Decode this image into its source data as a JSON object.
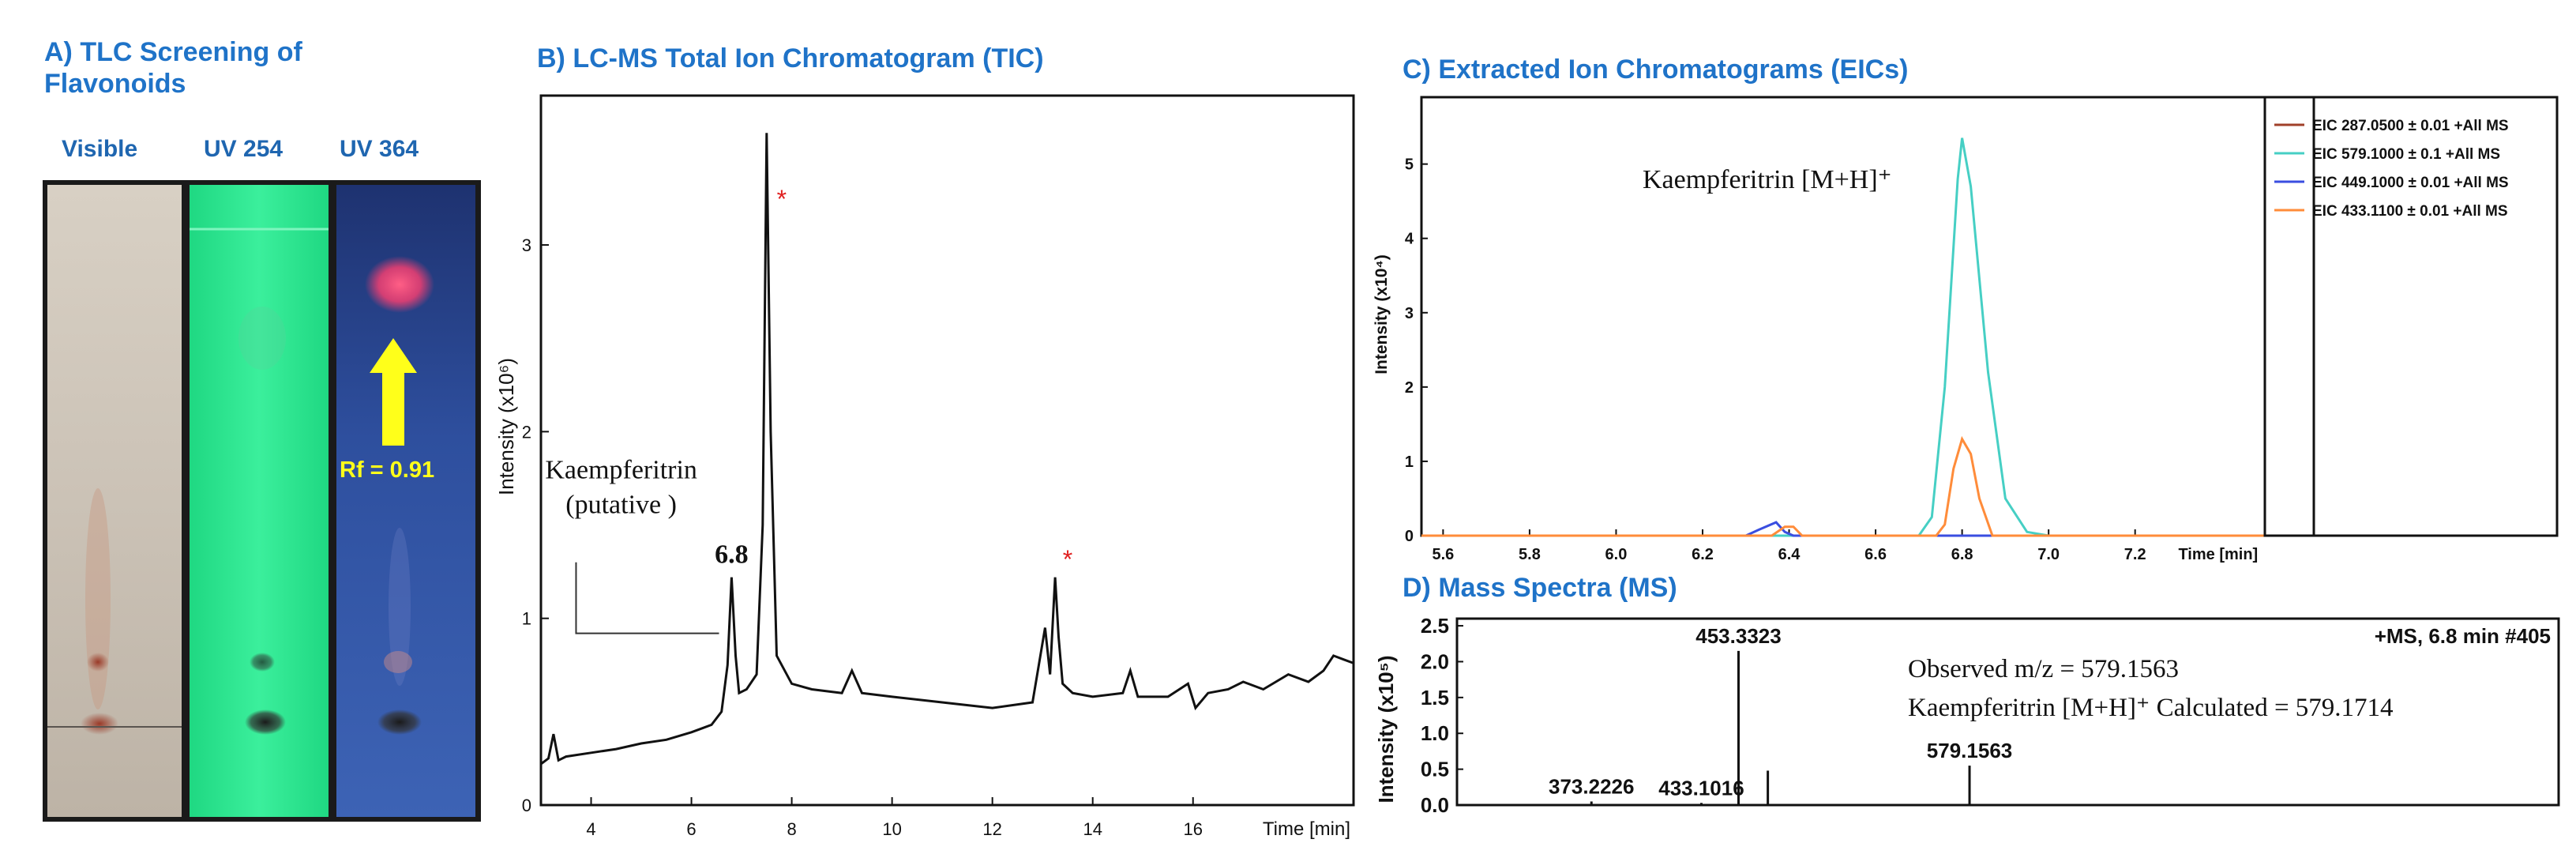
{
  "panelA": {
    "title_line1": "A) TLC Screening of",
    "title_line2": "Flavonoids",
    "lanes": [
      "Visible",
      "UV 254",
      "UV 364"
    ],
    "rf_label": "Rf = 0.91",
    "colors": {
      "visible_bg": "#c9c0b4",
      "uv254_bg": "#2ee58e",
      "uv364_bg": "#2a4a9a",
      "spot_pink": "#ff4f7a",
      "arrow": "#ffff00"
    }
  },
  "panelB": {
    "title": "B) LC-MS Total Ion Chromatogram (TIC)"
  },
  "panelC": {
    "title": "C) Extracted Ion Chromatograms (EICs)"
  },
  "panelD": {
    "title": "D) Mass Spectra (MS)"
  },
  "chart_data": [
    {
      "type": "line",
      "panel": "B",
      "ylabel": "Intensity (x10⁶)",
      "xlabel": "Time [min]",
      "xlim": [
        3,
        19.2
      ],
      "ylim": [
        0,
        3.8
      ],
      "xticks": [
        4,
        6,
        8,
        10,
        12,
        14,
        16
      ],
      "yticks": [
        0,
        1,
        2,
        3
      ],
      "x": [
        3.0,
        3.15,
        3.25,
        3.35,
        3.5,
        4.0,
        4.5,
        5.0,
        5.5,
        6.0,
        6.4,
        6.6,
        6.72,
        6.8,
        6.88,
        6.95,
        7.1,
        7.3,
        7.42,
        7.5,
        7.58,
        7.7,
        8.0,
        8.4,
        9.0,
        9.2,
        9.4,
        10.0,
        11.0,
        12.0,
        12.8,
        13.05,
        13.15,
        13.25,
        13.32,
        13.4,
        13.6,
        14.0,
        14.6,
        14.75,
        14.9,
        15.5,
        15.9,
        16.05,
        16.3,
        16.7,
        17.0,
        17.4,
        17.9,
        18.3,
        18.6,
        18.8,
        19.0,
        19.2
      ],
      "y": [
        0.22,
        0.25,
        0.38,
        0.24,
        0.26,
        0.28,
        0.3,
        0.33,
        0.35,
        0.39,
        0.43,
        0.5,
        0.75,
        1.22,
        0.8,
        0.6,
        0.62,
        0.7,
        1.5,
        3.6,
        2.0,
        0.8,
        0.65,
        0.62,
        0.6,
        0.72,
        0.6,
        0.58,
        0.55,
        0.52,
        0.55,
        0.95,
        0.7,
        1.22,
        0.9,
        0.65,
        0.6,
        0.58,
        0.6,
        0.72,
        0.58,
        0.58,
        0.65,
        0.52,
        0.6,
        0.62,
        0.66,
        0.62,
        0.7,
        0.66,
        0.72,
        0.8,
        0.78,
        0.76
      ],
      "peak_label": "6.8",
      "annotation_line1": "Kaempferitrin",
      "annotation_line2": "(putative )",
      "star_marks": [
        "*",
        "*"
      ],
      "star_times": [
        7.8,
        13.5
      ],
      "colors": {
        "trace": "#111111",
        "star": "#e02020"
      }
    },
    {
      "type": "line",
      "panel": "C",
      "ylabel": "Intensity (x10⁴)",
      "xlabel": "Time [min]",
      "xlim": [
        5.55,
        7.5
      ],
      "ylim": [
        0,
        5.9
      ],
      "xticks": [
        5.6,
        5.8,
        6.0,
        6.2,
        6.4,
        6.6,
        6.8,
        7.0,
        7.2
      ],
      "xtick_labels": [
        "5.6",
        "5.8",
        "6.0",
        "6.2",
        "6.4",
        "6.6",
        "6.8",
        "7.0",
        "7.2"
      ],
      "yticks": [
        0,
        1,
        2,
        3,
        4,
        5
      ],
      "annotation": "Kaempferitrin [M+H]⁺",
      "series": [
        {
          "name": "EIC 287.0500 ± 0.01 +All MS",
          "color": "#a0402a",
          "x": [
            5.55,
            7.5
          ],
          "y": [
            0,
            0
          ]
        },
        {
          "name": "EIC 579.1000 ± 0.1 +All MS",
          "color": "#46cfc4",
          "x": [
            5.55,
            6.7,
            6.73,
            6.76,
            6.79,
            6.8,
            6.82,
            6.86,
            6.9,
            6.95,
            7.0,
            7.5
          ],
          "y": [
            0,
            0,
            0.25,
            2.0,
            4.8,
            5.35,
            4.7,
            2.2,
            0.5,
            0.05,
            0,
            0
          ]
        },
        {
          "name": "EIC 449.1000 ± 0.01 +All MS",
          "color": "#3a4ee0",
          "x": [
            5.55,
            6.3,
            6.33,
            6.37,
            6.39,
            6.41,
            7.5
          ],
          "y": [
            0,
            0,
            0.08,
            0.18,
            0.05,
            0,
            0
          ]
        },
        {
          "name": "EIC 433.1100 ± 0.01 +All MS",
          "color": "#ff8c3a",
          "x": [
            5.55,
            6.36,
            6.39,
            6.41,
            6.43,
            6.74,
            6.76,
            6.78,
            6.8,
            6.82,
            6.84,
            6.87,
            7.5
          ],
          "y": [
            0,
            0,
            0.12,
            0.12,
            0,
            0,
            0.15,
            0.9,
            1.3,
            1.1,
            0.5,
            0,
            0
          ]
        }
      ]
    },
    {
      "type": "bar",
      "panel": "D",
      "ylabel": "Intensity (x10⁵)",
      "xlim": [
        300,
        900
      ],
      "ylim": [
        0,
        2.6
      ],
      "yticks": [
        0.0,
        0.5,
        1.0,
        1.5,
        2.0,
        2.5
      ],
      "ytick_labels": [
        "0.0",
        "0.5",
        "1.0",
        "1.5",
        "2.0",
        "2.5"
      ],
      "peaks_mz": [
        373.2226,
        433.1016,
        453.3323,
        469.3,
        579.1563
      ],
      "peaks_intensity": [
        0.05,
        0.03,
        2.15,
        0.48,
        0.55
      ],
      "peak_labels": [
        "373.2226",
        "433.1016",
        "453.3323",
        "",
        "579.1563"
      ],
      "header": "+MS, 6.8 min #405",
      "observed_text": "Observed m/z = 579.1563",
      "calculated_text": "Kaempferitrin [M+H]⁺ Calculated = 579.1714"
    }
  ]
}
